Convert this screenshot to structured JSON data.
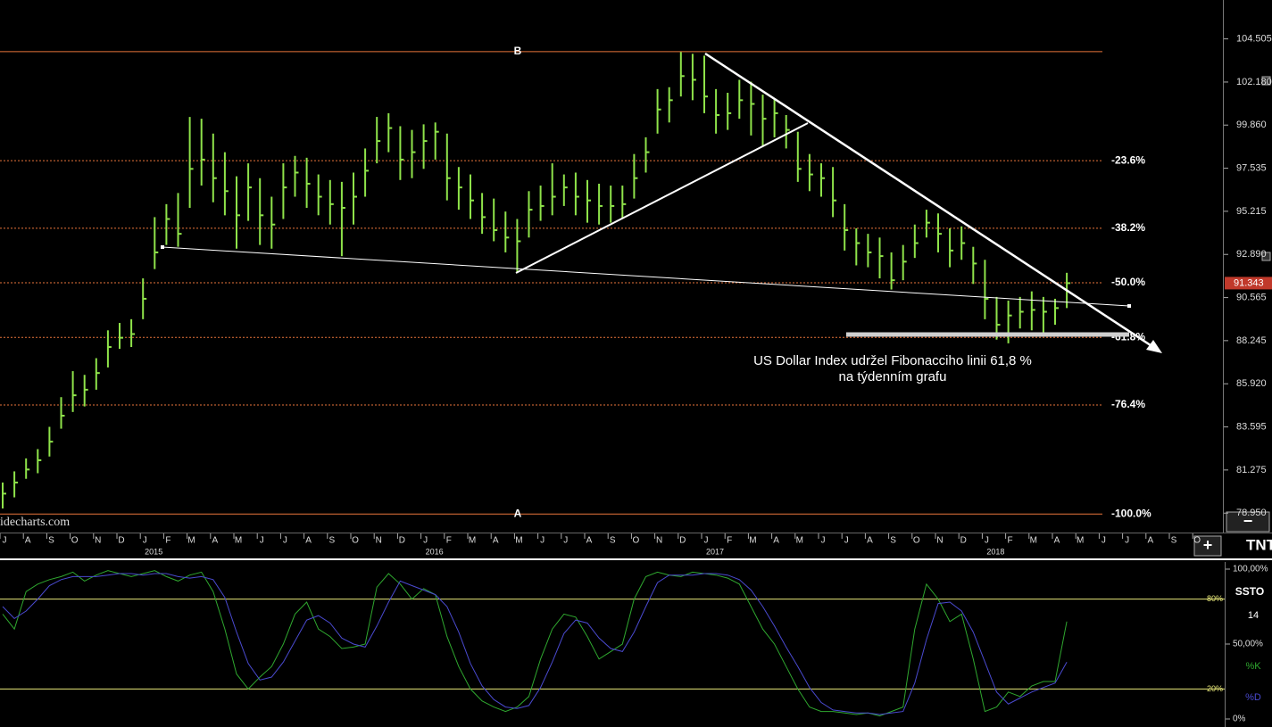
{
  "chart_data": [
    {
      "type": "ohlc",
      "categories": [
        "J",
        null,
        "A",
        null,
        "S",
        null,
        "O",
        null,
        "N",
        null,
        "D",
        null,
        "J",
        null,
        "F",
        null,
        "M",
        null,
        "A",
        null,
        "M",
        null,
        "J",
        null,
        "J",
        null,
        "A",
        null,
        "S",
        null,
        "O",
        null,
        "N",
        null,
        "D",
        null,
        "J",
        null,
        "F",
        null,
        "M",
        null,
        "A",
        null,
        "M",
        null,
        "J",
        null,
        "J",
        null,
        "A",
        null,
        "S",
        null,
        "O",
        null,
        "N",
        null,
        "D",
        null,
        "J",
        null,
        "F",
        null,
        "M",
        null,
        "A",
        null,
        "M",
        null,
        "J",
        null,
        "J",
        null,
        "A",
        null,
        "S",
        null,
        "O",
        null,
        "N",
        null,
        "D",
        null,
        "J",
        null,
        "F",
        null,
        "M",
        null,
        "A",
        null,
        "M",
        null,
        "J",
        null,
        "J",
        null,
        "A",
        null,
        "S",
        null,
        "O",
        null
      ],
      "year_ticks": [
        {
          "value": 12,
          "label": "2015"
        },
        {
          "value": 36,
          "label": "2016"
        },
        {
          "value": 60,
          "label": "2017"
        },
        {
          "value": 84,
          "label": "2018"
        }
      ],
      "high": [
        80.6,
        81.2,
        81.9,
        82.4,
        83.6,
        85.2,
        86.6,
        86.4,
        87.3,
        88.8,
        89.2,
        89.4,
        91.6,
        94.9,
        95.6,
        96.2,
        100.3,
        100.2,
        99.4,
        98.4,
        97.1,
        97.8,
        97.0,
        96.0,
        97.8,
        98.2,
        98.1,
        97.2,
        96.9,
        96.8,
        97.3,
        98.6,
        100.3,
        100.5,
        99.8,
        99.6,
        99.9,
        100.0,
        99.4,
        97.6,
        97.2,
        96.2,
        95.9,
        95.2,
        94.8,
        96.3,
        96.6,
        97.8,
        97.2,
        97.3,
        96.9,
        96.7,
        96.6,
        96.6,
        98.3,
        99.2,
        101.8,
        101.9,
        103.8,
        103.7,
        103.6,
        101.8,
        101.6,
        102.3,
        102.2,
        101.5,
        101.3,
        100.4,
        99.5,
        98.3,
        97.8,
        97.6,
        95.6,
        94.3,
        94.0,
        93.8,
        93.0,
        93.4,
        94.5,
        95.3,
        95.1,
        94.3,
        94.4,
        93.3,
        92.6,
        90.6,
        90.4,
        90.6,
        90.9,
        90.6,
        90.5,
        91.9,
        null,
        null,
        null,
        null,
        null,
        null,
        null,
        null,
        null,
        null,
        null,
        null
      ],
      "low": [
        79.2,
        79.8,
        80.8,
        81.1,
        82.0,
        83.5,
        84.4,
        84.7,
        85.6,
        86.8,
        87.8,
        87.9,
        89.4,
        92.1,
        93.4,
        93.3,
        95.4,
        96.6,
        95.7,
        95.0,
        93.2,
        94.7,
        93.4,
        93.2,
        94.8,
        96.0,
        95.4,
        95.0,
        94.5,
        92.8,
        94.5,
        96.0,
        97.8,
        98.4,
        96.9,
        97.0,
        97.5,
        98.0,
        95.8,
        95.3,
        94.8,
        94.0,
        93.6,
        93.0,
        91.9,
        93.8,
        94.7,
        95.0,
        95.5,
        95.0,
        94.6,
        94.5,
        94.6,
        94.8,
        95.9,
        97.3,
        99.4,
        100.0,
        101.4,
        101.2,
        100.5,
        99.4,
        99.6,
        100.2,
        99.3,
        98.7,
        99.2,
        98.6,
        96.8,
        96.3,
        96.0,
        94.9,
        93.1,
        92.3,
        92.2,
        91.6,
        91.0,
        91.5,
        92.7,
        93.8,
        93.0,
        92.2,
        92.6,
        91.3,
        89.4,
        88.3,
        88.1,
        88.9,
        88.8,
        88.6,
        89.1,
        90.0,
        null,
        null,
        null,
        null,
        null,
        null,
        null,
        null,
        null,
        null,
        null,
        null
      ],
      "close": [
        80.0,
        80.6,
        81.3,
        81.8,
        82.8,
        84.2,
        85.3,
        85.6,
        86.5,
        87.9,
        88.4,
        88.6,
        90.5,
        93.0,
        94.8,
        94.0,
        97.5,
        98.0,
        97.0,
        96.3,
        95.0,
        96.5,
        95.0,
        94.5,
        96.5,
        97.3,
        96.7,
        96.0,
        95.6,
        95.4,
        96.0,
        97.4,
        99.0,
        99.7,
        98.0,
        98.4,
        99.0,
        99.5,
        97.0,
        96.5,
        95.8,
        94.9,
        94.2,
        93.8,
        93.6,
        95.3,
        95.5,
        96.0,
        96.5,
        96.0,
        95.8,
        95.5,
        95.5,
        95.6,
        97.0,
        98.4,
        100.7,
        101.2,
        102.5,
        102.3,
        101.4,
        100.4,
        100.5,
        101.2,
        101.0,
        100.2,
        100.5,
        99.6,
        97.5,
        97.2,
        97.0,
        95.8,
        94.2,
        93.5,
        93.0,
        92.8,
        91.5,
        92.5,
        93.5,
        94.6,
        94.0,
        93.1,
        93.5,
        92.4,
        90.5,
        89.1,
        89.6,
        89.8,
        89.9,
        89.8,
        90.0,
        91.343,
        null,
        null,
        null,
        null,
        null,
        null,
        null,
        null,
        null,
        null,
        null,
        null
      ],
      "color": "#8fe34a",
      "ylim": [
        78.0,
        106.6
      ],
      "yticks": [
        104.505,
        {
          "value": 102.18,
          "label": "102.180"
        },
        {
          "value": 99.86,
          "label": "99.860"
        },
        97.535,
        95.215,
        {
          "value": 92.89,
          "label": "92.890"
        },
        90.565,
        88.245,
        {
          "value": 85.92,
          "label": "85.920"
        },
        83.595,
        81.275,
        {
          "value": 78.95,
          "label": "78.950"
        }
      ],
      "fib_color": "#e8743b",
      "fib_levels": [
        {
          "value": 103.82,
          "name": "B"
        },
        {
          "value": 97.94,
          "label": "-23.6%"
        },
        {
          "value": 94.3,
          "label": "-38.2%"
        },
        {
          "value": 91.36,
          "label": "-50.0%"
        },
        {
          "value": 88.42,
          "label": "-61.8%"
        },
        {
          "value": 84.78,
          "label": "-76.4%"
        },
        {
          "value": 78.9,
          "name": "A",
          "label": "-100.0%"
        }
      ],
      "annotation": [
        "US Dollar Index udržel Fibonacciho linii 61,8 %",
        "na týdenním grafu"
      ],
      "watermark": "idecharts.com"
    },
    {
      "type": "line",
      "indicator": "SSTO",
      "period": 14,
      "series": [
        {
          "name": "%K",
          "color": "#2fa82f",
          "values": [
            70,
            60,
            85,
            90,
            93,
            95,
            98,
            92,
            96,
            99,
            97,
            95,
            97,
            99,
            95,
            92,
            96,
            98,
            85,
            60,
            30,
            20,
            28,
            35,
            50,
            70,
            78,
            60,
            55,
            47,
            48,
            50,
            88,
            97,
            90,
            80,
            87,
            83,
            55,
            35,
            20,
            12,
            8,
            5,
            8,
            15,
            40,
            60,
            70,
            68,
            55,
            40,
            45,
            50,
            80,
            95,
            98,
            96,
            95,
            98,
            97,
            96,
            94,
            90,
            75,
            60,
            50,
            35,
            20,
            8,
            5,
            5,
            4,
            3,
            4,
            2,
            5,
            8,
            60,
            90,
            80,
            65,
            70,
            40,
            5,
            8,
            18,
            15,
            22,
            25,
            25,
            65,
            null,
            null,
            null,
            null,
            null,
            null,
            null,
            null,
            null,
            null,
            null,
            null
          ]
        },
        {
          "name": "%D",
          "color": "#4a4ad0",
          "values": [
            75,
            67,
            72,
            80,
            89,
            93,
            95,
            95,
            95,
            96,
            97,
            97,
            96,
            97,
            97,
            95,
            94,
            95,
            93,
            81,
            58,
            37,
            26,
            28,
            38,
            52,
            66,
            69,
            64,
            54,
            50,
            48,
            62,
            78,
            92,
            89,
            86,
            83,
            75,
            58,
            37,
            22,
            13,
            8,
            7,
            9,
            21,
            38,
            57,
            66,
            64,
            54,
            47,
            45,
            58,
            75,
            91,
            96,
            96,
            96,
            97,
            97,
            96,
            93,
            86,
            75,
            62,
            48,
            35,
            21,
            11,
            6,
            5,
            4,
            4,
            3,
            4,
            5,
            24,
            53,
            77,
            78,
            72,
            58,
            38,
            18,
            10,
            14,
            18,
            21,
            24,
            38,
            null,
            null,
            null,
            null,
            null,
            null,
            null,
            null,
            null,
            null,
            null,
            null
          ]
        }
      ],
      "ylim": [
        0,
        100
      ],
      "yticks": [
        {
          "value": 100,
          "label": "100,00%"
        },
        {
          "value": 50,
          "label": "50,00%"
        },
        {
          "value": 0,
          "label": "0%"
        }
      ],
      "levels": [
        {
          "value": 80,
          "label": "80%"
        },
        {
          "value": 20,
          "label": "20%"
        }
      ],
      "level_color": "#e8e87a"
    }
  ],
  "ui": {
    "collapse": "−",
    "expand": "+",
    "logo": "TNT"
  }
}
